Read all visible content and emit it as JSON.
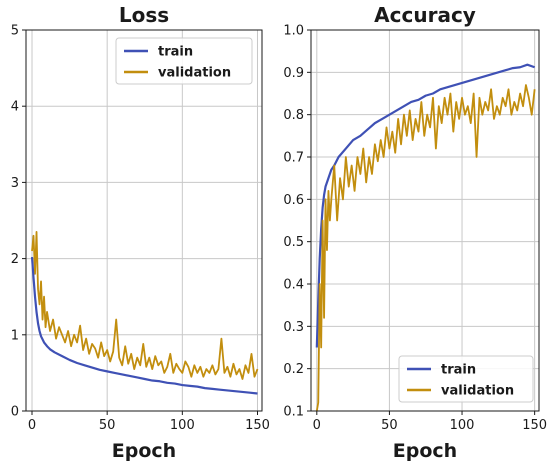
{
  "colors": {
    "train": "#3f51b5",
    "validation": "#c28e0e"
  },
  "chart_data": [
    {
      "type": "line",
      "title": "Loss",
      "xlabel": "Epoch",
      "ylabel": "",
      "xlim": [
        -4,
        153
      ],
      "ylim": [
        0,
        5
      ],
      "xticks": [
        0,
        50,
        100,
        150
      ],
      "yticks": [
        0,
        1,
        2,
        3,
        4,
        5
      ],
      "grid": true,
      "legend": "top-right",
      "series": [
        {
          "name": "train",
          "color": "#3f51b5",
          "x": [
            0,
            1,
            2,
            3,
            4,
            5,
            6,
            8,
            10,
            12,
            15,
            20,
            25,
            30,
            35,
            40,
            45,
            50,
            55,
            60,
            65,
            70,
            75,
            80,
            85,
            90,
            95,
            100,
            105,
            110,
            115,
            120,
            125,
            130,
            135,
            140,
            145,
            150
          ],
          "values": [
            2.02,
            1.75,
            1.5,
            1.3,
            1.15,
            1.05,
            0.98,
            0.9,
            0.85,
            0.81,
            0.77,
            0.72,
            0.67,
            0.63,
            0.6,
            0.57,
            0.54,
            0.52,
            0.5,
            0.48,
            0.46,
            0.44,
            0.42,
            0.4,
            0.39,
            0.37,
            0.36,
            0.34,
            0.33,
            0.32,
            0.3,
            0.29,
            0.28,
            0.27,
            0.26,
            0.25,
            0.24,
            0.23
          ]
        },
        {
          "name": "validation",
          "color": "#c28e0e",
          "x": [
            0,
            1,
            2,
            3,
            4,
            5,
            6,
            7,
            8,
            9,
            10,
            12,
            14,
            16,
            18,
            20,
            22,
            24,
            26,
            28,
            30,
            32,
            34,
            36,
            38,
            40,
            42,
            44,
            46,
            48,
            50,
            52,
            54,
            56,
            58,
            60,
            62,
            64,
            66,
            68,
            70,
            72,
            74,
            76,
            78,
            80,
            82,
            84,
            86,
            88,
            90,
            92,
            94,
            96,
            98,
            100,
            102,
            104,
            106,
            108,
            110,
            112,
            114,
            116,
            118,
            120,
            122,
            124,
            126,
            128,
            130,
            132,
            134,
            136,
            138,
            140,
            142,
            144,
            146,
            148,
            150
          ],
          "values": [
            2.1,
            2.3,
            1.8,
            2.35,
            1.6,
            1.4,
            1.7,
            1.2,
            1.5,
            1.1,
            1.3,
            1.05,
            1.2,
            0.95,
            1.1,
            1.0,
            0.9,
            1.05,
            0.85,
            1.0,
            0.9,
            1.12,
            0.8,
            0.95,
            0.75,
            0.88,
            0.82,
            0.7,
            0.9,
            0.72,
            0.8,
            0.65,
            0.78,
            1.2,
            0.7,
            0.6,
            0.85,
            0.62,
            0.75,
            0.55,
            0.7,
            0.6,
            0.88,
            0.58,
            0.7,
            0.55,
            0.72,
            0.6,
            0.65,
            0.5,
            0.58,
            0.75,
            0.5,
            0.62,
            0.55,
            0.5,
            0.65,
            0.58,
            0.45,
            0.6,
            0.5,
            0.58,
            0.45,
            0.55,
            0.5,
            0.6,
            0.48,
            0.55,
            0.95,
            0.5,
            0.58,
            0.45,
            0.62,
            0.48,
            0.55,
            0.42,
            0.6,
            0.5,
            0.75,
            0.45,
            0.55
          ]
        }
      ]
    },
    {
      "type": "line",
      "title": "Accuracy",
      "xlabel": "Epoch",
      "ylabel": "",
      "xlim": [
        -4,
        153
      ],
      "ylim": [
        0.1,
        1.0
      ],
      "xticks": [
        0,
        50,
        100,
        150
      ],
      "yticks": [
        0.1,
        0.2,
        0.3,
        0.4,
        0.5,
        0.6,
        0.7,
        0.8,
        0.9,
        1.0
      ],
      "grid": true,
      "legend": "bottom-right",
      "series": [
        {
          "name": "train",
          "color": "#3f51b5",
          "x": [
            0,
            1,
            2,
            3,
            4,
            5,
            6,
            8,
            10,
            12,
            15,
            20,
            25,
            30,
            35,
            40,
            45,
            50,
            55,
            60,
            65,
            70,
            75,
            80,
            85,
            90,
            95,
            100,
            105,
            110,
            115,
            120,
            125,
            130,
            135,
            140,
            145,
            150
          ],
          "values": [
            0.25,
            0.36,
            0.46,
            0.53,
            0.58,
            0.61,
            0.63,
            0.65,
            0.67,
            0.68,
            0.7,
            0.72,
            0.74,
            0.75,
            0.765,
            0.78,
            0.79,
            0.8,
            0.81,
            0.82,
            0.83,
            0.835,
            0.845,
            0.85,
            0.86,
            0.865,
            0.87,
            0.875,
            0.88,
            0.885,
            0.89,
            0.895,
            0.9,
            0.905,
            0.91,
            0.912,
            0.918,
            0.912
          ]
        },
        {
          "name": "validation",
          "color": "#c28e0e",
          "x": [
            0,
            1,
            2,
            3,
            4,
            5,
            6,
            7,
            8,
            9,
            10,
            12,
            14,
            16,
            18,
            20,
            22,
            24,
            26,
            28,
            30,
            32,
            34,
            36,
            38,
            40,
            42,
            44,
            46,
            48,
            50,
            52,
            54,
            56,
            58,
            60,
            62,
            64,
            66,
            68,
            70,
            72,
            74,
            76,
            78,
            80,
            82,
            84,
            86,
            88,
            90,
            92,
            94,
            96,
            98,
            100,
            102,
            104,
            106,
            108,
            110,
            112,
            114,
            116,
            118,
            120,
            122,
            124,
            126,
            128,
            130,
            132,
            134,
            136,
            138,
            140,
            142,
            144,
            146,
            148,
            150
          ],
          "values": [
            0.1,
            0.12,
            0.4,
            0.25,
            0.55,
            0.32,
            0.6,
            0.48,
            0.62,
            0.55,
            0.6,
            0.68,
            0.55,
            0.65,
            0.6,
            0.7,
            0.63,
            0.68,
            0.62,
            0.7,
            0.66,
            0.72,
            0.64,
            0.7,
            0.66,
            0.73,
            0.69,
            0.74,
            0.7,
            0.77,
            0.72,
            0.76,
            0.71,
            0.79,
            0.73,
            0.8,
            0.75,
            0.81,
            0.74,
            0.79,
            0.76,
            0.83,
            0.75,
            0.8,
            0.77,
            0.84,
            0.72,
            0.82,
            0.78,
            0.84,
            0.8,
            0.85,
            0.76,
            0.83,
            0.79,
            0.84,
            0.8,
            0.82,
            0.78,
            0.85,
            0.7,
            0.84,
            0.8,
            0.83,
            0.81,
            0.86,
            0.79,
            0.82,
            0.8,
            0.84,
            0.82,
            0.86,
            0.8,
            0.83,
            0.81,
            0.85,
            0.82,
            0.87,
            0.84,
            0.8,
            0.86
          ]
        }
      ]
    }
  ]
}
